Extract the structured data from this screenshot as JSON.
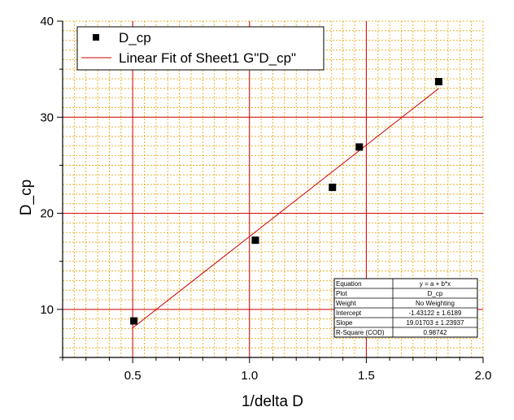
{
  "chart_data": {
    "type": "scatter",
    "xlabel": "1/delta D",
    "ylabel": "D_cp",
    "xlim": [
      0.2,
      2.0
    ],
    "ylim": [
      5,
      40
    ],
    "x_ticks": [
      0.5,
      1.0,
      1.5,
      2.0
    ],
    "x_tick_labels": [
      "0.5",
      "1.0",
      "1.5",
      "2.0"
    ],
    "y_ticks": [
      10,
      20,
      30,
      40
    ],
    "y_tick_labels": [
      "10",
      "20",
      "30",
      "40"
    ],
    "grid": true,
    "grid_colors": {
      "major": "#cc0000",
      "minor": "#e8a000"
    },
    "series": [
      {
        "name": "D_cp",
        "marker": "square",
        "color": "#000000",
        "x": [
          0.505,
          1.025,
          1.355,
          1.47,
          1.81
        ],
        "y": [
          8.8,
          17.2,
          22.7,
          26.9,
          33.7
        ]
      }
    ],
    "fit": {
      "name": "Linear Fit of Sheet1 G\"D_cp\"",
      "color": "#cc0000",
      "intercept": -1.43122,
      "slope": 19.01703,
      "x_range": [
        0.5,
        1.81
      ]
    },
    "legend": {
      "placement": "top-left",
      "entries": [
        "D_cp",
        "Linear Fit of Sheet1 G\"D_cp\""
      ]
    },
    "stats_table": [
      [
        "Equation",
        "y = a + b*x"
      ],
      [
        "Plot",
        "D_cp"
      ],
      [
        "Weight",
        "No Weighting"
      ],
      [
        "Intercept",
        "-1.43122 ± 1.6189"
      ],
      [
        "Slope",
        "19.01703 ± 1.23937"
      ],
      [
        "R-Square (COD)",
        "0.98742"
      ]
    ]
  }
}
